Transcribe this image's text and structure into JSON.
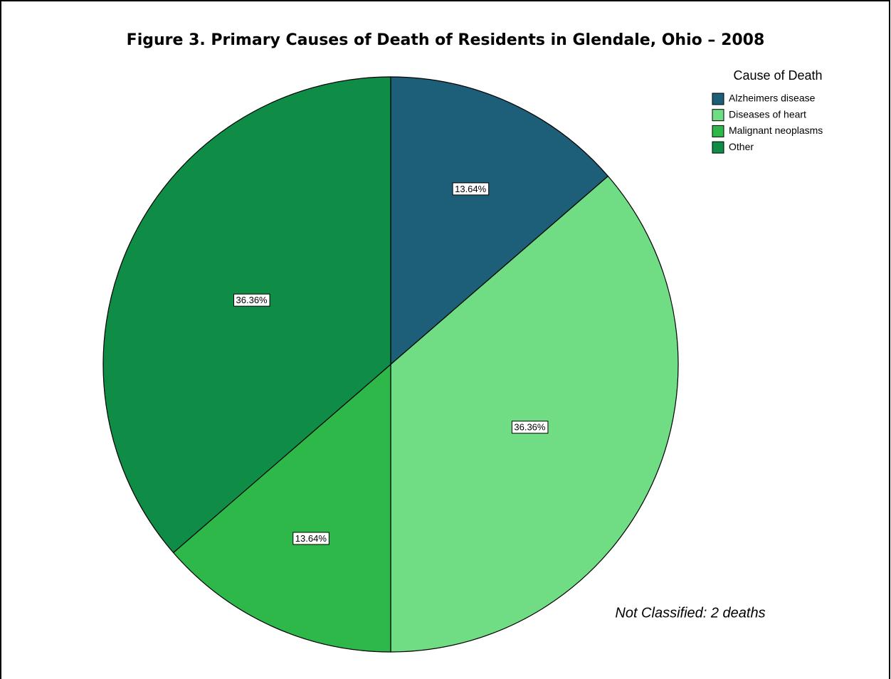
{
  "chart_data": {
    "type": "pie",
    "title": "Figure 3.  Primary Causes of Death of Residents in Glendale, Ohio – 2008",
    "legend_title": "Cause of Death",
    "categories": [
      "Alzheimers disease",
      "Diseases of heart",
      "Malignant neoplasms",
      "Other"
    ],
    "values": [
      13.64,
      36.36,
      13.64,
      36.36
    ],
    "value_labels": [
      "13.64%",
      "36.36%",
      "13.64%",
      "36.36%"
    ],
    "colors": [
      "#1d5e78",
      "#70dc84",
      "#2fb84a",
      "#0f8c46"
    ],
    "annotation": "Not Classified: 2 deaths",
    "legend": "top-right"
  }
}
